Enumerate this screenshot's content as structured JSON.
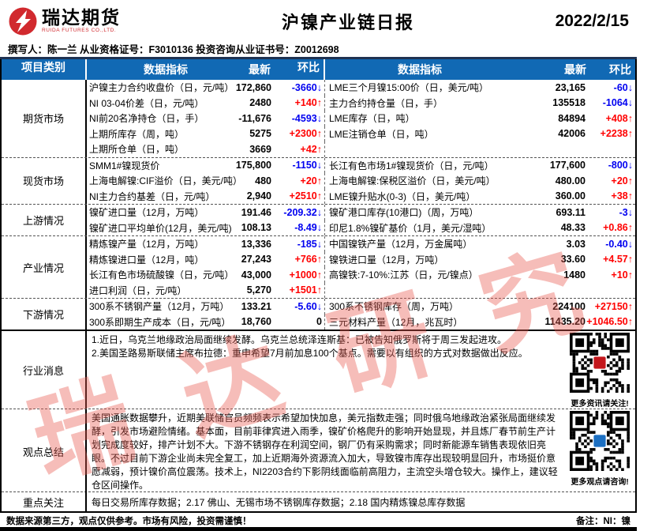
{
  "header": {
    "logo_cn": "瑞达期货",
    "logo_en": "RUIDA FUTURES CO.,LTD.",
    "title": "沪镍产业链日报",
    "date": "2022/2/15",
    "author_line": "撰写人：陈一兰  从业资格证号：F3010136   投资咨询从业证书号：Z0012698"
  },
  "colors": {
    "header_bg": "#1169b4",
    "up_red": "#ff0000",
    "down_blue": "#0000f0",
    "brand_red": "#d1292e",
    "watermark_pink": "#e85a50"
  },
  "table": {
    "headers": [
      "项目类别",
      "数据指标",
      "最新",
      "环比",
      "数据指标",
      "最新",
      "环比"
    ],
    "groups": [
      {
        "key": "futures",
        "category": "期货市场",
        "rows": [
          {
            "ll": "沪镍主力合约收盘价（日，元/吨）",
            "lv": "172,860",
            "lc": "-3660↓",
            "ld": "down",
            "rl": "LME三个月镍15:00价（日，美元/吨）",
            "rv": "23,165",
            "rc": "-60↓",
            "rd": "down"
          },
          {
            "ll": "NI 03-04价差（日，元/吨）",
            "lv": "2480",
            "lc": "+140↑",
            "ld": "up",
            "rl": "主力合约持仓量（日，手）",
            "rv": "135518",
            "rc": "-1064↓",
            "rd": "down"
          },
          {
            "ll": "NI前20名净持仓（日，手）",
            "lv": "-11,676",
            "lc": "-4593↓",
            "ld": "down",
            "rl": "LME库存（日，吨）",
            "rv": "84894",
            "rc": "+408↑",
            "rd": "up"
          },
          {
            "ll": "上期所库存（周，吨）",
            "lv": "5275",
            "lc": "+2300↑",
            "ld": "up",
            "rl": "LME注销仓单（日，吨）",
            "rv": "42006",
            "rc": "+2238↑",
            "rd": "up"
          },
          {
            "ll": "上期所仓单（日，吨）",
            "lv": "3669",
            "lc": "+42↑",
            "ld": "up",
            "rl": "",
            "rv": "",
            "rc": "",
            "rd": "flat"
          }
        ]
      },
      {
        "key": "spot",
        "category": "现货市场",
        "rows": [
          {
            "ll": "SMM1#镍现货价",
            "lv": "175,800",
            "lc": "-1150↓",
            "ld": "down",
            "rl": "长江有色市场1#镍现货价（日，元/吨）",
            "rv": "177,600",
            "rc": "-800↓",
            "rd": "down"
          },
          {
            "ll": "上海电解镍:CIF溢价（日，美元/吨）",
            "lv": "480",
            "lc": "+20↑",
            "ld": "up",
            "rl": "上海电解镍:保税区溢价（日，美元/吨）",
            "rv": "480.00",
            "rc": "+20↑",
            "rd": "up"
          },
          {
            "ll": "NI主力合约基差（日，元/吨）",
            "lv": "2,940",
            "lc": "+2510↑",
            "ld": "up",
            "rl": "LME镍升贴水(0-3)（日，美元/吨）",
            "rv": "360.00",
            "rc": "+38↑",
            "rd": "up"
          }
        ]
      },
      {
        "key": "upstream",
        "category": "上游情况",
        "rows": [
          {
            "ll": "镍矿进口量（12月，万吨）",
            "lv": "191.46",
            "lc": "-209.32↓",
            "ld": "down",
            "rl": "镍矿港口库存(10港口)（周，万吨）",
            "rv": "693.11",
            "rc": "-3↓",
            "rd": "down"
          },
          {
            "ll": "镍矿进口平均单价(12月，美元/吨)",
            "lv": "108.13",
            "lc": "-8.49↓",
            "ld": "down",
            "rl": "印尼1.8%镍矿基价（1月，美元/湿吨）",
            "rv": "48.33",
            "rc": "+0.86↑",
            "rd": "up"
          }
        ]
      },
      {
        "key": "industry",
        "category": "产业情况",
        "rows": [
          {
            "ll": "精炼镍产量（12月，万吨）",
            "lv": "13,336",
            "lc": "-185↓",
            "ld": "down",
            "rl": "中国镍铁产量（12月，万金属吨）",
            "rv": "3.03",
            "rc": "-0.40↓",
            "rd": "down"
          },
          {
            "ll": "精炼镍进口量（12月，吨）",
            "lv": "27,243",
            "lc": "+766↑",
            "ld": "up",
            "rl": "镍铁进口量（12月，万吨）",
            "rv": "33.60",
            "rc": "+4.57↑",
            "rd": "up"
          },
          {
            "ll": "长江有色市场硫酸镍（日，元/吨）",
            "lv": "43,000",
            "lc": "+1000↑",
            "ld": "up",
            "rl": "高镍铁:7-10%:江苏（日，元/镍点）",
            "rv": "1480",
            "rc": "+10↑",
            "rd": "up"
          },
          {
            "ll": "进口利润（日，元/吨）",
            "lv": "5,270",
            "lc": "+1501↑",
            "ld": "up",
            "rl": "",
            "rv": "",
            "rc": "",
            "rd": "flat"
          }
        ]
      },
      {
        "key": "downstream",
        "category": "下游情况",
        "rows": [
          {
            "ll": "300系不锈钢产量（12月，万吨）",
            "lv": "133.21",
            "lc": "-5.60↓",
            "ld": "down",
            "rl": "300系不锈钢库存（周，万吨）",
            "rv": "224100",
            "rc": "+27150↑",
            "rd": "up"
          },
          {
            "ll": "300系即期生产成本（日，元/吨）",
            "lv": "18,760",
            "lc": "0",
            "ld": "flat",
            "rl": "三元材料产量（12月，兆瓦时）",
            "rv": "11435.20",
            "rc": "+1046.50↑",
            "rd": "up"
          }
        ]
      }
    ]
  },
  "news": {
    "category": "行业消息",
    "lines": [
      "1.近日，乌克兰地缘政治局面继续发酵。乌克兰总统泽连斯基：已被告知俄罗斯将于周三发起进攻。",
      "2.美国圣路易斯联储主席布拉德：重申希望7月前加息100个基点。需要以有组织的方式对数据做出反应。"
    ],
    "qr_caption": "更多资讯请关注!"
  },
  "opinion": {
    "category": "观点总结",
    "text": "美国通胀数据攀升，近期美联储官员频频表示希望加快加息，美元指数走强；同时俄乌地缘政治紧张局面继续发酵，引发市场避险情绪。基本面，目前菲律宾进入雨季，镍矿价格爬升的影响开始显现，并且炼厂春节前生产计划完成度较好，排产计划不大。下游不锈钢存在利润空间，钢厂仍有采购需求；同时新能源车销售表现依旧亮眼。不过目前下游企业尚未完全复工，加上近期海外资源流入加大，导致镍市库存出现较明显回升，市场挺价意愿减弱，预计镍价高位震荡。技术上，NI2203合约下影阴线面临前高阻力，主流空头增仓较大。操作上，建议轻仓区间操作。",
    "qr_caption": "更多观点请咨询!"
  },
  "focus": {
    "category": "重点关注",
    "text": "每日交易所库存数据；2.17 佛山、无锡市场不锈钢库存数据；2.18 国内精炼镍总库存数据"
  },
  "footer": {
    "disclaimer": "数据来源第三方，观点仅供参考。市场有风险，投资需谨慎！",
    "note": "备注：NI：镍"
  },
  "watermark": {
    "text": "瑞达研究"
  }
}
